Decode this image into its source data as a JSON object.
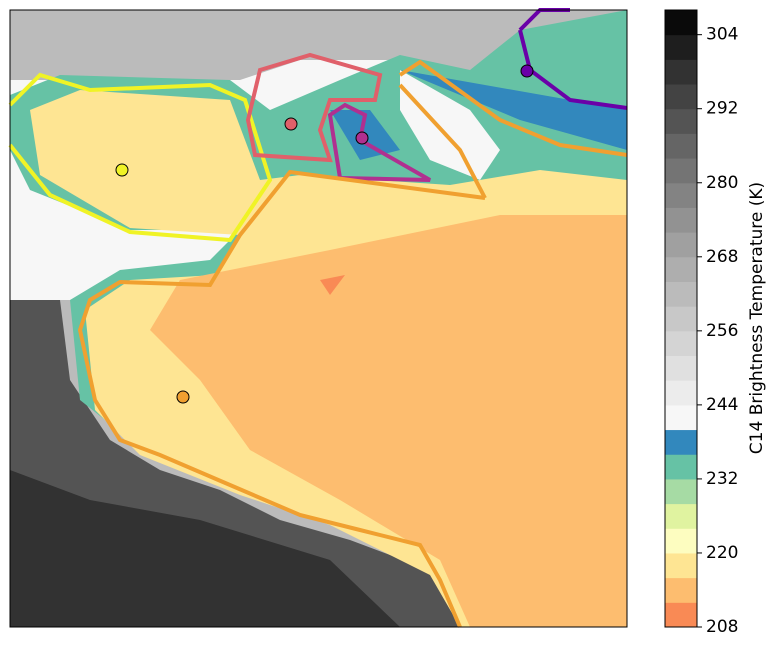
{
  "chart_data": {
    "type": "contour-map",
    "colorbar": {
      "label": "C14 Brightness Temperature (K)",
      "lim": [
        208,
        308
      ],
      "ticks": [
        208,
        220,
        232,
        244,
        256,
        268,
        280,
        292,
        304
      ],
      "levels": [
        208,
        212,
        216,
        220,
        224,
        228,
        232,
        236,
        240,
        244,
        248,
        252,
        256,
        260,
        264,
        268,
        272,
        276,
        280,
        284,
        288,
        292,
        296,
        300,
        304,
        308
      ],
      "colors": [
        "#f98a55",
        "#fdbd6f",
        "#fee593",
        "#fdfdc0",
        "#e0f3a0",
        "#a6dba4",
        "#66c2a5",
        "#3288bd",
        "#f7f7f7",
        "#ececec",
        "#e0e0e0",
        "#d4d4d4",
        "#c8c8c8",
        "#bbbbbb",
        "#aeaeae",
        "#a0a0a0",
        "#929292",
        "#838383",
        "#747474",
        "#656565",
        "#545454",
        "#434343",
        "#323232",
        "#1e1e1e",
        "#0a0a0a"
      ]
    }
  }
}
